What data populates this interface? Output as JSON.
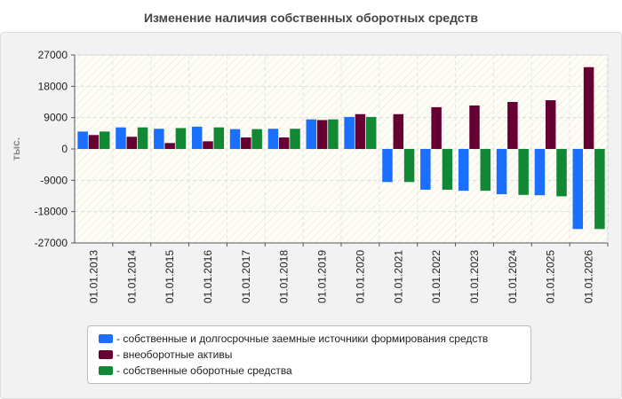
{
  "chart_data": {
    "type": "bar",
    "title": "Изменение наличия собственных оборотных средств",
    "ylabel": "тыс.",
    "ylim": [
      -27000,
      27000
    ],
    "yticks": [
      27000,
      18000,
      9000,
      0,
      -9000,
      -18000,
      -27000
    ],
    "grid": true,
    "legend_position": "bottom",
    "categories": [
      "01.01.2013",
      "01.01.2014",
      "01.01.2015",
      "01.01.2016",
      "01.01.2017",
      "01.01.2018",
      "01.01.2019",
      "01.01.2020",
      "01.01.2021",
      "01.01.2022",
      "01.01.2023",
      "01.01.2024",
      "01.01.2025",
      "01.01.2026"
    ],
    "series": [
      {
        "name": "- собственные и долгосрочные заемные источники формирования средств",
        "color": "#1a6fff",
        "values": [
          5000,
          6200,
          5800,
          6400,
          5700,
          5800,
          8500,
          9200,
          -9500,
          -11700,
          -12000,
          -13000,
          -13300,
          -23000
        ]
      },
      {
        "name": "- внеоборотные активы",
        "color": "#660033",
        "values": [
          4000,
          3500,
          1700,
          2200,
          3300,
          3300,
          8300,
          10000,
          10000,
          12000,
          12500,
          13500,
          14000,
          23500
        ]
      },
      {
        "name": "- собственные оборотные средства",
        "color": "#118833",
        "values": [
          5000,
          6200,
          6000,
          6200,
          5700,
          5800,
          8500,
          9200,
          -9500,
          -11700,
          -12000,
          -13200,
          -13600,
          -23000
        ]
      }
    ]
  }
}
